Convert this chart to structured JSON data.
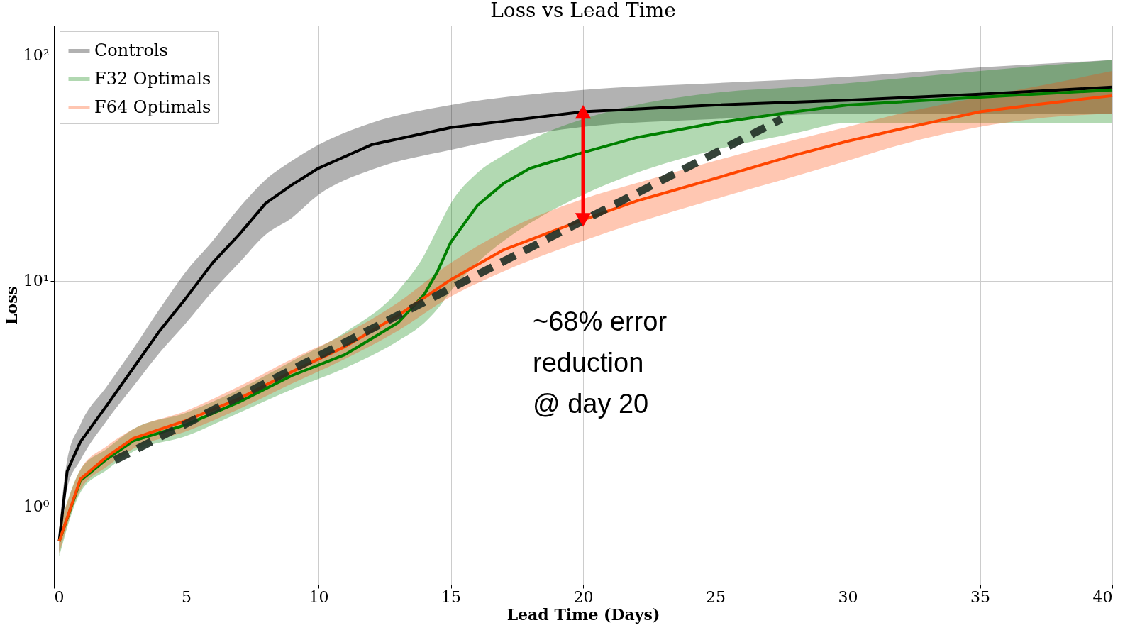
{
  "chart_data": {
    "type": "line",
    "title": "Loss vs Lead Time",
    "xlabel": "Lead Time (Days)",
    "ylabel": "Loss",
    "log": "y",
    "grid": true,
    "legend": "top left",
    "line_style": "solid",
    "marker": "none",
    "xlim": [
      0,
      40
    ],
    "xticks": [
      0,
      5,
      10,
      15,
      20,
      25,
      30,
      35,
      40
    ],
    "ylim": [
      0.45,
      135
    ],
    "yticks": [
      {
        "value": 1,
        "label": "10⁰"
      },
      {
        "value": 10,
        "label": "10¹"
      },
      {
        "value": 100,
        "label": "10²"
      }
    ],
    "series": [
      {
        "name": "Controls",
        "color": "#000000",
        "x": [
          0.2,
          0.5,
          1,
          2,
          3,
          4,
          5,
          6,
          7,
          8,
          9,
          10,
          12,
          15,
          20,
          25,
          30,
          35,
          40
        ],
        "values": [
          0.7,
          1.43,
          1.93,
          2.8,
          4.1,
          6.0,
          8.4,
          12,
          16,
          22,
          26.6,
          31.5,
          40,
          47.7,
          56,
          60,
          63,
          67,
          72
        ],
        "lower": [
          0.62,
          1.2,
          1.6,
          2.4,
          3.4,
          4.8,
          6.5,
          9,
          12,
          16,
          19,
          24,
          31,
          38,
          48,
          52,
          55,
          55,
          55
        ],
        "upper": [
          0.8,
          1.6,
          2.3,
          3.4,
          5.0,
          7.5,
          11,
          15,
          21,
          28,
          34,
          40,
          50,
          60,
          70,
          75,
          80,
          88,
          95
        ]
      },
      {
        "name": "F32 Optimals",
        "color": "#008000",
        "x": [
          0.2,
          1,
          2,
          3,
          5,
          7,
          9,
          11,
          13,
          14,
          14.5,
          15,
          16,
          17,
          18,
          20,
          22,
          25,
          28,
          30,
          35,
          40
        ],
        "values": [
          0.7,
          1.3,
          1.62,
          1.95,
          2.3,
          2.9,
          3.8,
          4.7,
          6.5,
          8.7,
          11,
          14.8,
          21.5,
          27,
          31.5,
          37,
          43,
          50,
          56,
          60,
          65,
          70
        ],
        "lower": [
          0.6,
          1.15,
          1.45,
          1.75,
          2.05,
          2.6,
          3.3,
          4.1,
          5.4,
          6.5,
          7.5,
          9,
          12,
          15,
          18,
          24,
          30,
          38,
          45,
          50,
          50,
          50
        ],
        "upper": [
          0.8,
          1.45,
          1.8,
          2.2,
          2.6,
          3.3,
          4.4,
          5.9,
          9,
          13,
          17,
          22,
          30,
          36,
          42,
          52,
          60,
          68,
          72,
          75,
          85,
          95
        ]
      },
      {
        "name": "F64 Optimals",
        "color": "#ff4500",
        "x": [
          0.2,
          1,
          2,
          3,
          5,
          7,
          9,
          11,
          13,
          15,
          17,
          20,
          22,
          25,
          28,
          30,
          32,
          35,
          37,
          40
        ],
        "values": [
          0.7,
          1.32,
          1.66,
          2.0,
          2.4,
          3.0,
          3.95,
          5.1,
          7.0,
          10.1,
          13.7,
          18.6,
          22.5,
          28.4,
          36,
          41.5,
          47,
          56,
          60,
          66
        ],
        "lower": [
          0.62,
          1.18,
          1.5,
          1.8,
          2.15,
          2.7,
          3.5,
          4.5,
          6.0,
          8.5,
          11,
          15,
          18,
          23,
          29,
          34,
          40,
          48,
          52,
          55
        ],
        "upper": [
          0.8,
          1.45,
          1.85,
          2.2,
          2.65,
          3.4,
          4.5,
          5.8,
          8.0,
          12,
          16.5,
          23,
          27,
          34,
          42,
          48,
          55,
          65,
          72,
          85
        ]
      },
      {
        "type": "line",
        "color": "#1f2f25",
        "line_style": "dashed",
        "x": [
          2.3,
          27.5
        ],
        "values": [
          1.6,
          52
        ]
      },
      {
        "type": "line",
        "color": "#ff0000",
        "marker": "triangle",
        "x": [
          20,
          20
        ],
        "values": [
          18.6,
          56
        ]
      }
    ],
    "annotations": [
      "~68% error\nreduction\n@ day 20"
    ]
  }
}
